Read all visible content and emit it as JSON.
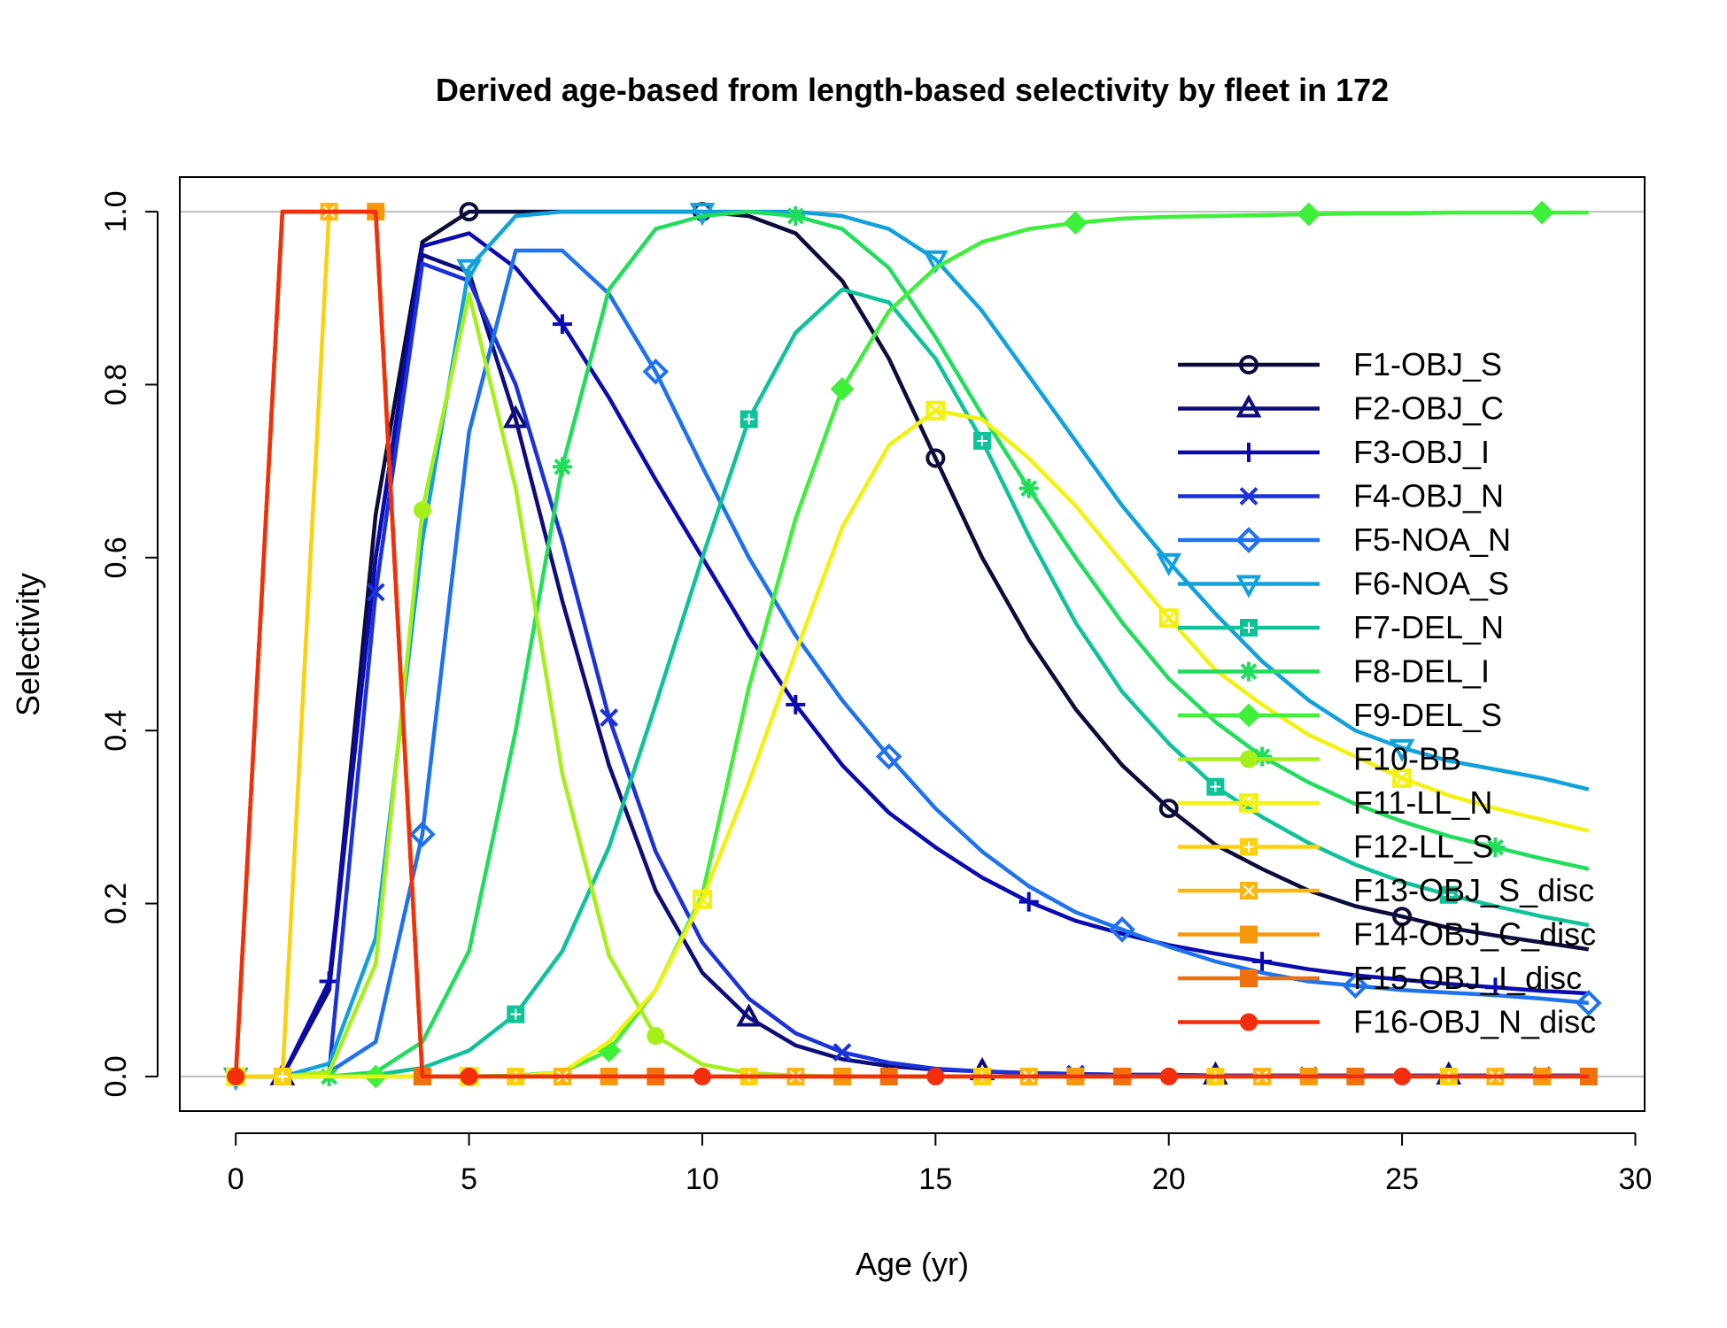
{
  "chart_data": {
    "type": "line",
    "title": "Derived age-based from length-based selectivity by fleet in 172",
    "xlabel": "Age (yr)",
    "ylabel": "Selectivity",
    "xlim": [
      -1.2,
      30.2
    ],
    "ylim": [
      -0.04,
      1.04
    ],
    "xticks": [
      0,
      5,
      10,
      15,
      20,
      25,
      30
    ],
    "yticks": [
      0.0,
      0.2,
      0.4,
      0.6,
      0.8,
      1.0
    ],
    "xtick_labels": [
      "0",
      "5",
      "10",
      "15",
      "20",
      "25",
      "30"
    ],
    "ytick_labels": [
      "0.0",
      "0.2",
      "0.4",
      "0.6",
      "0.8",
      "1.0"
    ],
    "hlines": [
      0,
      1
    ],
    "grid": false,
    "legend_position": "right",
    "x": [
      0,
      1,
      2,
      3,
      4,
      5,
      6,
      7,
      8,
      9,
      10,
      11,
      12,
      13,
      14,
      15,
      16,
      17,
      18,
      19,
      20,
      21,
      22,
      23,
      24,
      25,
      26,
      27,
      28,
      29
    ],
    "series": [
      {
        "name": "F1-OBJ_S",
        "color": "#0b0c3b",
        "marker": "circle",
        "marker_every": 5,
        "marker_offset": 0,
        "values": [
          0,
          0,
          0.1,
          0.65,
          0.965,
          1.0,
          1.0,
          1.0,
          1.0,
          1.0,
          1.0,
          0.995,
          0.975,
          0.92,
          0.83,
          0.715,
          0.6,
          0.505,
          0.425,
          0.36,
          0.31,
          0.268,
          0.24,
          0.215,
          0.197,
          0.185,
          0.172,
          0.163,
          0.155,
          0.147
        ]
      },
      {
        "name": "F2-OBJ_C",
        "color": "#0c0c7a",
        "marker": "triangle",
        "marker_every": 5,
        "marker_offset": 1,
        "values": [
          0,
          0,
          0.1,
          0.6,
          0.95,
          0.93,
          0.76,
          0.55,
          0.36,
          0.215,
          0.12,
          0.068,
          0.036,
          0.02,
          0.012,
          0.008,
          0.006,
          0.004,
          0.003,
          0.002,
          0.002,
          0.001,
          0.001,
          0.001,
          0.001,
          0.001,
          0.001,
          0.001,
          0.001,
          0.001
        ]
      },
      {
        "name": "F3-OBJ_I",
        "color": "#0a0ab0",
        "marker": "plus",
        "marker_every": 5,
        "marker_offset": 2,
        "values": [
          0,
          0,
          0.11,
          0.6,
          0.96,
          0.975,
          0.935,
          0.87,
          0.785,
          0.69,
          0.6,
          0.51,
          0.43,
          0.36,
          0.305,
          0.265,
          0.23,
          0.202,
          0.18,
          0.165,
          0.152,
          0.142,
          0.133,
          0.124,
          0.117,
          0.112,
          0.107,
          0.103,
          0.099,
          0.096
        ]
      },
      {
        "name": "F4-OBJ_N",
        "color": "#1a32d8",
        "marker": "cross",
        "marker_every": 5,
        "marker_offset": 3,
        "values": [
          0,
          0,
          0.005,
          0.56,
          0.94,
          0.92,
          0.8,
          0.62,
          0.415,
          0.26,
          0.155,
          0.09,
          0.05,
          0.028,
          0.016,
          0.009,
          0.006,
          0.004,
          0.003,
          0.002,
          0.002,
          0.001,
          0.001,
          0.001,
          0.001,
          0.001,
          0.001,
          0.001,
          0.001,
          0.001
        ]
      },
      {
        "name": "F5-NOA_N",
        "color": "#1e72ee",
        "marker": "diamond",
        "marker_every": 5,
        "marker_offset": 4,
        "values": [
          0,
          0,
          0.005,
          0.04,
          0.28,
          0.745,
          0.955,
          0.955,
          0.905,
          0.815,
          0.705,
          0.6,
          0.51,
          0.435,
          0.37,
          0.31,
          0.26,
          0.22,
          0.19,
          0.17,
          0.15,
          0.133,
          0.12,
          0.11,
          0.105,
          0.1,
          0.097,
          0.094,
          0.09,
          0.085
        ]
      },
      {
        "name": "F6-NOA_S",
        "color": "#11a1dc",
        "marker": "invtriangle",
        "marker_every": 5,
        "marker_offset": 0,
        "values": [
          0,
          0,
          0.015,
          0.16,
          0.62,
          0.935,
          0.995,
          1.0,
          1.0,
          1.0,
          1.0,
          1.0,
          1.0,
          0.995,
          0.98,
          0.945,
          0.885,
          0.81,
          0.735,
          0.66,
          0.595,
          0.535,
          0.48,
          0.435,
          0.4,
          0.38,
          0.365,
          0.355,
          0.345,
          0.332
        ]
      },
      {
        "name": "F7-DEL_N",
        "color": "#0fc398",
        "marker": "squareplus",
        "marker_every": 5,
        "marker_offset": 1,
        "values": [
          0,
          0,
          0,
          0.002,
          0.01,
          0.03,
          0.072,
          0.145,
          0.265,
          0.43,
          0.6,
          0.76,
          0.86,
          0.91,
          0.895,
          0.83,
          0.735,
          0.625,
          0.525,
          0.445,
          0.385,
          0.335,
          0.3,
          0.27,
          0.245,
          0.225,
          0.21,
          0.197,
          0.185,
          0.175
        ]
      },
      {
        "name": "F8-DEL_I",
        "color": "#20de5c",
        "marker": "asterisk",
        "marker_every": 5,
        "marker_offset": 2,
        "values": [
          0,
          0,
          0,
          0.005,
          0.04,
          0.145,
          0.4,
          0.705,
          0.91,
          0.98,
          0.995,
          1.0,
          0.995,
          0.98,
          0.935,
          0.855,
          0.765,
          0.68,
          0.6,
          0.525,
          0.46,
          0.41,
          0.37,
          0.34,
          0.315,
          0.295,
          0.278,
          0.265,
          0.252,
          0.24
        ]
      },
      {
        "name": "F9-DEL_S",
        "color": "#3ef03a",
        "marker": "diamondplus",
        "marker_every": 5,
        "marker_offset": 3,
        "values": [
          0,
          0,
          0,
          0,
          0,
          0,
          0.001,
          0.005,
          0.03,
          0.1,
          0.21,
          0.45,
          0.645,
          0.795,
          0.885,
          0.935,
          0.965,
          0.98,
          0.987,
          0.992,
          0.994,
          0.995,
          0.996,
          0.997,
          0.998,
          0.998,
          0.999,
          0.999,
          0.999,
          0.999
        ]
      },
      {
        "name": "F10-BB",
        "color": "#a6f01a",
        "marker": "filledcircle",
        "marker_every": 5,
        "marker_offset": 4,
        "values": [
          0,
          0,
          0.005,
          0.13,
          0.655,
          0.905,
          0.68,
          0.35,
          0.14,
          0.047,
          0.014,
          0.004,
          0.001,
          0,
          0,
          0,
          0,
          0,
          0,
          0,
          0,
          0,
          0,
          0,
          0,
          0,
          0,
          0,
          0,
          0
        ]
      },
      {
        "name": "F11-LL_N",
        "color": "#f2f20e",
        "marker": "boxcross",
        "marker_every": 5,
        "marker_offset": 0,
        "values": [
          0,
          0,
          0,
          0,
          0,
          0,
          0,
          0.005,
          0.04,
          0.1,
          0.205,
          0.34,
          0.49,
          0.635,
          0.73,
          0.77,
          0.76,
          0.715,
          0.66,
          0.595,
          0.53,
          0.47,
          0.43,
          0.395,
          0.37,
          0.345,
          0.325,
          0.31,
          0.297,
          0.284
        ]
      },
      {
        "name": "F12-LL_S",
        "color": "#fbd10e",
        "marker": "squareplus",
        "marker_every": 5,
        "marker_offset": 1,
        "values": [
          0,
          0,
          1.0,
          1.0,
          0,
          0,
          0,
          0,
          0,
          0,
          0,
          0,
          0,
          0,
          0,
          0,
          0,
          0,
          0,
          0,
          0,
          0,
          0,
          0,
          0,
          0,
          0,
          0,
          0,
          0
        ]
      },
      {
        "name": "F13-OBJ_S_disc",
        "color": "#fcb50e",
        "marker": "squarecross",
        "marker_every": 5,
        "marker_offset": 2,
        "values": [
          0,
          1.0,
          1.0,
          1.0,
          0,
          0,
          0,
          0,
          0,
          0,
          0,
          0,
          0,
          0,
          0,
          0,
          0,
          0,
          0,
          0,
          0,
          0,
          0,
          0,
          0,
          0,
          0,
          0,
          0,
          0
        ]
      },
      {
        "name": "F14-OBJ_C_disc",
        "color": "#f8980c",
        "marker": "filledsquare",
        "marker_every": 5,
        "marker_offset": 3,
        "values": [
          0,
          1.0,
          1.0,
          1.0,
          0,
          0,
          0,
          0,
          0,
          0,
          0,
          0,
          0,
          0,
          0,
          0,
          0,
          0,
          0,
          0,
          0,
          0,
          0,
          0,
          0,
          0,
          0,
          0,
          0,
          0
        ]
      },
      {
        "name": "F15-OBJ_I_disc",
        "color": "#f2700c",
        "marker": "filledsquare",
        "marker_every": 5,
        "marker_offset": 4,
        "values": [
          0,
          1.0,
          1.0,
          1.0,
          0,
          0,
          0,
          0,
          0,
          0,
          0,
          0,
          0,
          0,
          0,
          0,
          0,
          0,
          0,
          0,
          0,
          0,
          0,
          0,
          0,
          0,
          0,
          0,
          0,
          0
        ]
      },
      {
        "name": "F16-OBJ_N_disc",
        "color": "#f22e0c",
        "marker": "filledcircle",
        "marker_every": 5,
        "marker_offset": 0,
        "values": [
          0,
          1.0,
          1.0,
          1.0,
          0,
          0,
          0,
          0,
          0,
          0,
          0,
          0,
          0,
          0,
          0,
          0,
          0,
          0,
          0,
          0,
          0,
          0,
          0,
          0,
          0,
          0,
          0,
          0,
          0,
          0
        ]
      }
    ]
  }
}
